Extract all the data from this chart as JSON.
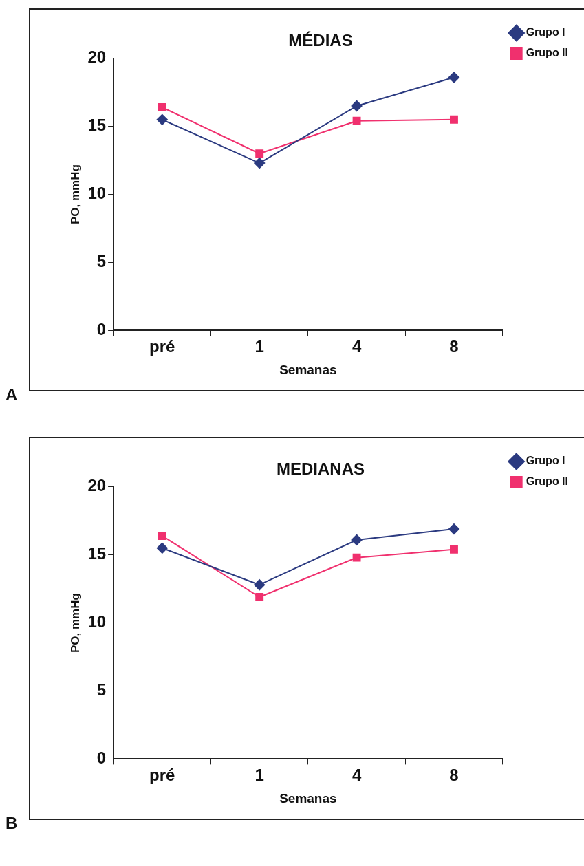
{
  "chart_data": [
    {
      "type": "line",
      "title": "MÉDIAS",
      "xlabel": "Semanas",
      "ylabel": "PO, mmHg",
      "categories": [
        "pré",
        "1",
        "4",
        "8"
      ],
      "series": [
        {
          "name": "Grupo I",
          "color": "#2b3a80",
          "marker": "diamond",
          "values": [
            15.5,
            12.3,
            16.5,
            18.6
          ]
        },
        {
          "name": "Grupo II",
          "color": "#f0306e",
          "marker": "square",
          "values": [
            16.4,
            13.0,
            15.4,
            15.5
          ]
        }
      ],
      "ylim": [
        0,
        20
      ],
      "yticks": [
        0,
        5,
        10,
        15,
        20
      ],
      "grid": false,
      "legend": "top right",
      "annotations": [
        "A"
      ]
    },
    {
      "type": "line",
      "title": "MEDIANAS",
      "xlabel": "Semanas",
      "ylabel": "PO, mmHg",
      "categories": [
        "pré",
        "1",
        "4",
        "8"
      ],
      "series": [
        {
          "name": "Grupo I",
          "color": "#2b3a80",
          "marker": "diamond",
          "values": [
            15.5,
            12.8,
            16.1,
            16.9
          ]
        },
        {
          "name": "Grupo II",
          "color": "#f0306e",
          "marker": "square",
          "values": [
            16.4,
            11.9,
            14.8,
            15.4
          ]
        }
      ],
      "ylim": [
        0,
        20
      ],
      "yticks": [
        0,
        5,
        10,
        15,
        20
      ],
      "grid": false,
      "legend": "top right",
      "annotations": [
        "B"
      ]
    }
  ]
}
